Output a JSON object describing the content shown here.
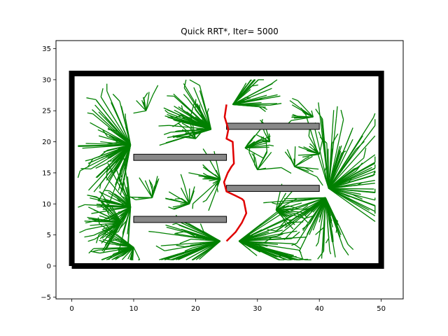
{
  "chart_data": {
    "type": "scatter",
    "title": "Quick RRT*, Iter= 5000",
    "xlabel": "",
    "ylabel": "",
    "xlim": [
      -2.55,
      53.55
    ],
    "ylim": [
      -5.3,
      36.3
    ],
    "xticks": [
      0,
      10,
      20,
      30,
      40,
      50
    ],
    "yticks": [
      -5,
      0,
      5,
      10,
      15,
      20,
      25,
      30,
      35
    ],
    "grid": false,
    "legend": "none",
    "colors": {
      "tree": "#008000",
      "path": "#e00000",
      "boundary": "#000000",
      "obstacle_fill": "#888888",
      "obstacle_edge": "#000000"
    },
    "boundary": {
      "x": [
        0,
        50,
        50,
        0,
        0
      ],
      "y": [
        0,
        0,
        31,
        31,
        0
      ]
    },
    "obstacles": [
      {
        "x0": 25,
        "y0": 22,
        "x1": 40,
        "y1": 23
      },
      {
        "x0": 10,
        "y0": 17,
        "x1": 25,
        "y1": 18
      },
      {
        "x0": 25,
        "y0": 12,
        "x1": 40,
        "y1": 13
      },
      {
        "x0": 10,
        "y0": 7,
        "x1": 25,
        "y1": 8
      }
    ],
    "tree_hubs": [
      {
        "x": 9.5,
        "y": 19.5,
        "n": 70,
        "ang": [
          100,
          260
        ],
        "r": [
          2,
          10
        ]
      },
      {
        "x": 9.5,
        "y": 9.5,
        "n": 50,
        "ang": [
          90,
          270
        ],
        "r": [
          1,
          8
        ]
      },
      {
        "x": 10,
        "y": 3,
        "n": 35,
        "ang": [
          140,
          280
        ],
        "r": [
          2,
          7
        ]
      },
      {
        "x": 8,
        "y": 7,
        "n": 30,
        "ang": [
          120,
          240
        ],
        "r": [
          2,
          6
        ]
      },
      {
        "x": 24,
        "y": 4,
        "n": 45,
        "ang": [
          150,
          230
        ],
        "r": [
          3,
          12
        ]
      },
      {
        "x": 22.5,
        "y": 22,
        "n": 55,
        "ang": [
          100,
          200
        ],
        "r": [
          2,
          9
        ]
      },
      {
        "x": 26,
        "y": 26,
        "n": 30,
        "ang": [
          -10,
          60
        ],
        "r": [
          2,
          8
        ]
      },
      {
        "x": 27,
        "y": 4,
        "n": 45,
        "ang": [
          -40,
          40
        ],
        "r": [
          2,
          12
        ]
      },
      {
        "x": 41.5,
        "y": 12.5,
        "n": 70,
        "ang": [
          -30,
          110
        ],
        "r": [
          2,
          14
        ]
      },
      {
        "x": 41,
        "y": 11,
        "n": 60,
        "ang": [
          180,
          300
        ],
        "r": [
          2,
          10
        ]
      },
      {
        "x": 39,
        "y": 24,
        "n": 12,
        "ang": [
          100,
          200
        ],
        "r": [
          1,
          4
        ]
      },
      {
        "x": 24,
        "y": 14,
        "n": 20,
        "ang": [
          100,
          250
        ],
        "r": [
          1,
          6
        ]
      },
      {
        "x": 28,
        "y": 19,
        "n": 15,
        "ang": [
          -30,
          60
        ],
        "r": [
          1,
          5
        ]
      },
      {
        "x": 33,
        "y": 9,
        "n": 20,
        "ang": [
          -60,
          80
        ],
        "r": [
          1,
          5
        ]
      },
      {
        "x": 19,
        "y": 10,
        "n": 15,
        "ang": [
          60,
          200
        ],
        "r": [
          1,
          4
        ]
      },
      {
        "x": 13,
        "y": 11,
        "n": 12,
        "ang": [
          60,
          200
        ],
        "r": [
          1,
          4
        ]
      },
      {
        "x": 20,
        "y": 20.5,
        "n": 10,
        "ang": [
          40,
          180
        ],
        "r": [
          1,
          4
        ]
      },
      {
        "x": 12,
        "y": 25,
        "n": 8,
        "ang": [
          60,
          200
        ],
        "r": [
          1,
          3
        ]
      },
      {
        "x": 36,
        "y": 16,
        "n": 12,
        "ang": [
          -30,
          120
        ],
        "r": [
          1,
          4
        ]
      },
      {
        "x": 40,
        "y": 18,
        "n": 10,
        "ang": [
          60,
          200
        ],
        "r": [
          1,
          4
        ]
      },
      {
        "x": 30,
        "y": 15.5,
        "n": 10,
        "ang": [
          0,
          120
        ],
        "r": [
          1,
          4
        ]
      },
      {
        "x": 32,
        "y": 20,
        "n": 8,
        "ang": [
          60,
          180
        ],
        "r": [
          1,
          3
        ]
      }
    ],
    "path": {
      "x": [
        25,
        26.5,
        27.5,
        28.2,
        27.8,
        27.5,
        26.5,
        25,
        24.6,
        25.2,
        25.8,
        26.2,
        26.0,
        25.0,
        25.3,
        24.7,
        25.0
      ],
      "y": [
        4,
        5.5,
        7,
        8.5,
        10.5,
        10.8,
        11.3,
        12,
        13.5,
        15,
        16,
        16.5,
        20,
        20.5,
        22,
        24,
        26
      ]
    }
  }
}
